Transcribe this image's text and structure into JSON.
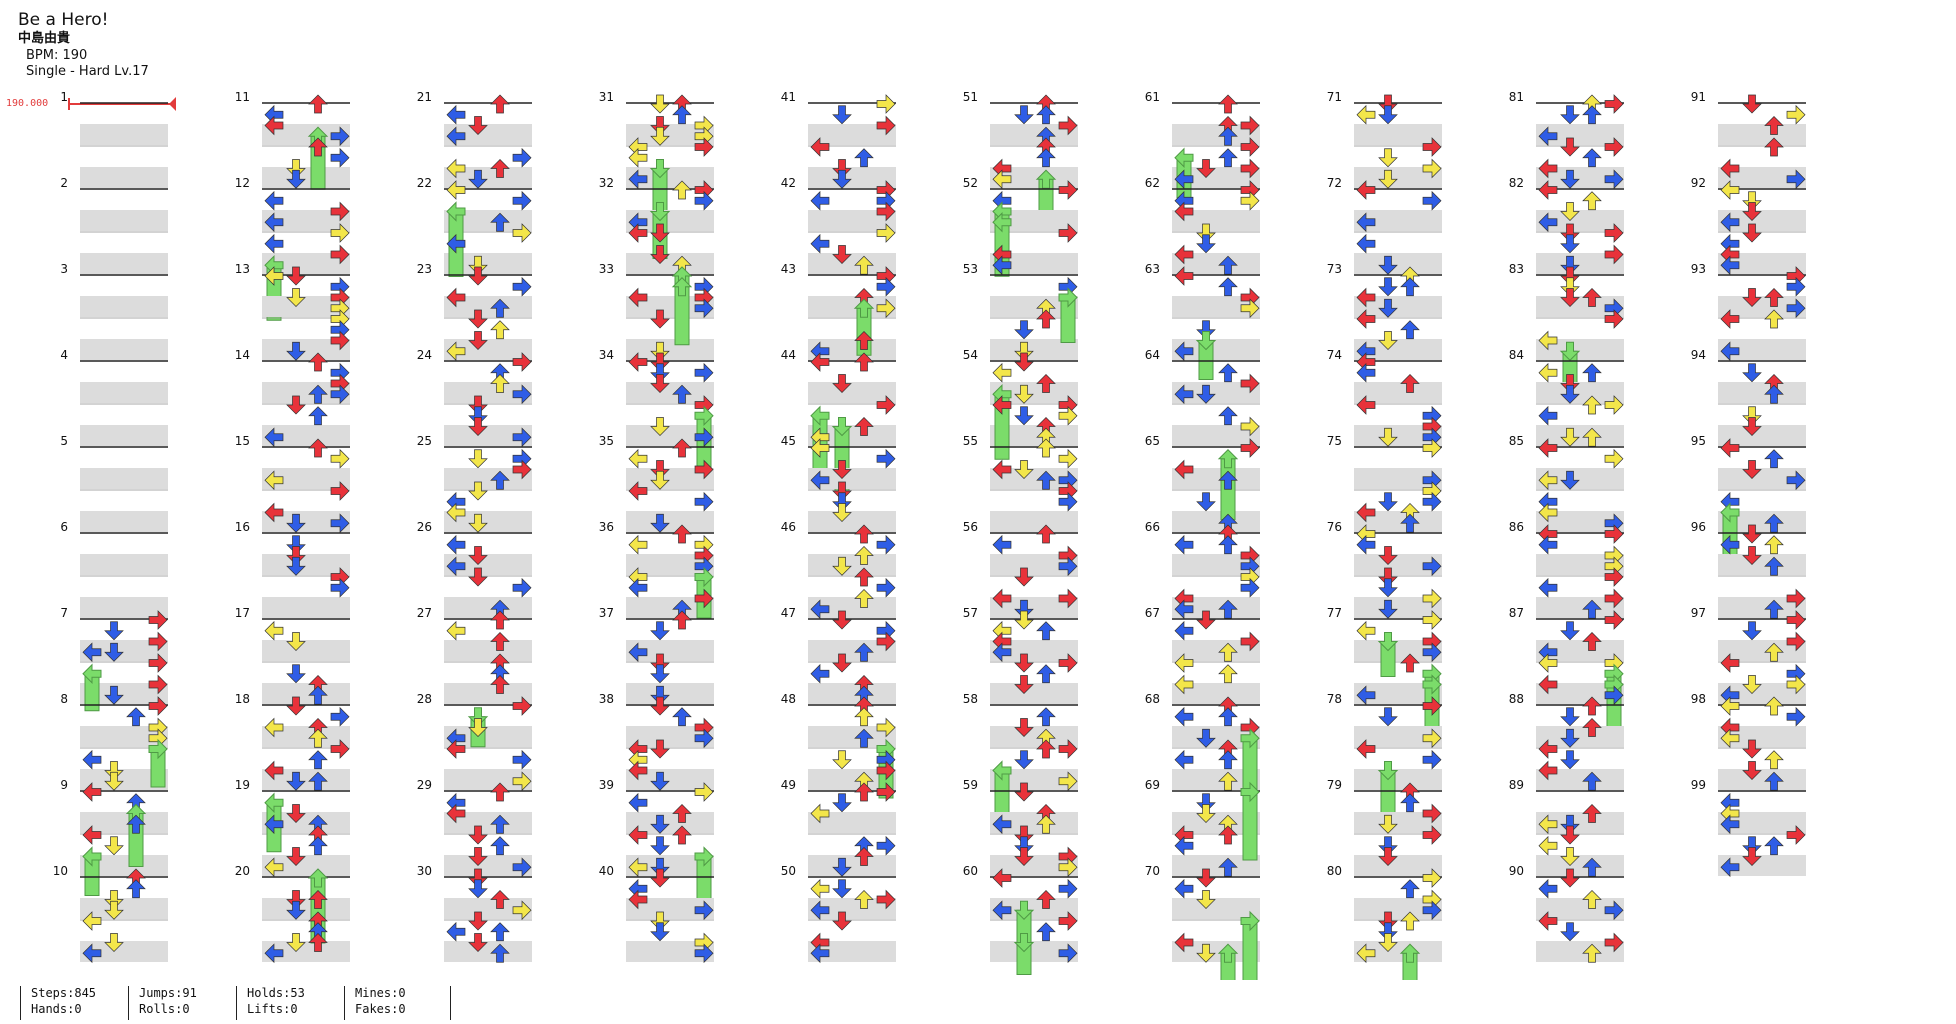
{
  "song": {
    "title": "Be a Hero!",
    "artist": "中島由貴",
    "bpm_text": "BPM: 190",
    "difficulty_text": "Single - Hard  Lv.17"
  },
  "bpm_marker": {
    "label": "190.000",
    "color": "#e23b3b"
  },
  "measures": {
    "count": 99,
    "per_column": 10,
    "first_note_measure": 7,
    "end_after_measure": 99
  },
  "colors": {
    "arrow_red": "#e8323a",
    "arrow_blue": "#2f5de6",
    "arrow_yellow": "#f3e64a",
    "hold_green": "#7bdc6a",
    "band_grey": "#dcdcdc",
    "bar_line": "#222222"
  },
  "stats": {
    "steps": "Steps:845",
    "hands": "Hands:0",
    "jumps": "Jumps:91",
    "rolls": "Rolls:0",
    "holds": "Holds:53",
    "lifts": "Lifts:0",
    "mines": "Mines:0",
    "fakes": "Fakes:0"
  }
}
